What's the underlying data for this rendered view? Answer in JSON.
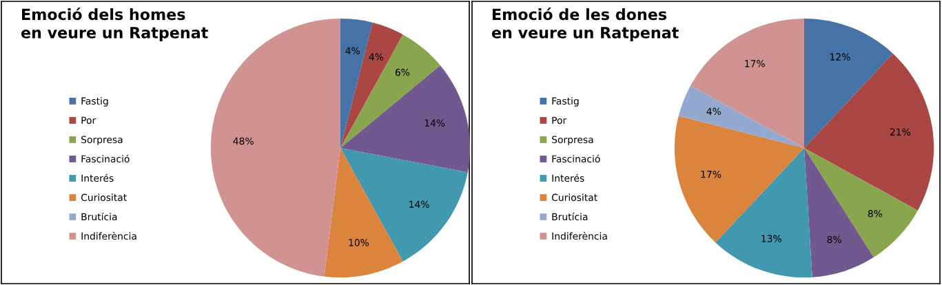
{
  "chart_data": [
    {
      "type": "pie",
      "title": "Emoció dels homes\nen veure un Ratpenat",
      "categories": [
        "Fastig",
        "Por",
        "Sorpresa",
        "Fascinació",
        "Interés",
        "Curiositat",
        "Brutícia",
        "Indiferència"
      ],
      "values": [
        4,
        4,
        6,
        14,
        14,
        10,
        0,
        48
      ],
      "value_labels": [
        "4%",
        "4%",
        "6%",
        "14%",
        "14%",
        "10%",
        null,
        "48%"
      ],
      "colors": [
        "#4572a7",
        "#aa4643",
        "#89a54e",
        "#71588f",
        "#4198af",
        "#db843d",
        "#93a9cf",
        "#d19392"
      ],
      "legend": "left"
    },
    {
      "type": "pie",
      "title": "Emoció de les dones\nen veure un Ratpenat",
      "categories": [
        "Fastig",
        "Por",
        "Sorpresa",
        "Fascinació",
        "Interés",
        "Curiositat",
        "Brutícia",
        "Indiferència"
      ],
      "values": [
        12,
        21,
        8,
        8,
        13,
        17,
        4,
        17
      ],
      "value_labels": [
        "12%",
        "21%",
        "8%",
        "8%",
        "13%",
        "17%",
        "4%",
        "17%"
      ],
      "colors": [
        "#4572a7",
        "#aa4643",
        "#89a54e",
        "#71588f",
        "#4198af",
        "#db843d",
        "#93a9cf",
        "#d19392"
      ],
      "legend": "left"
    }
  ]
}
